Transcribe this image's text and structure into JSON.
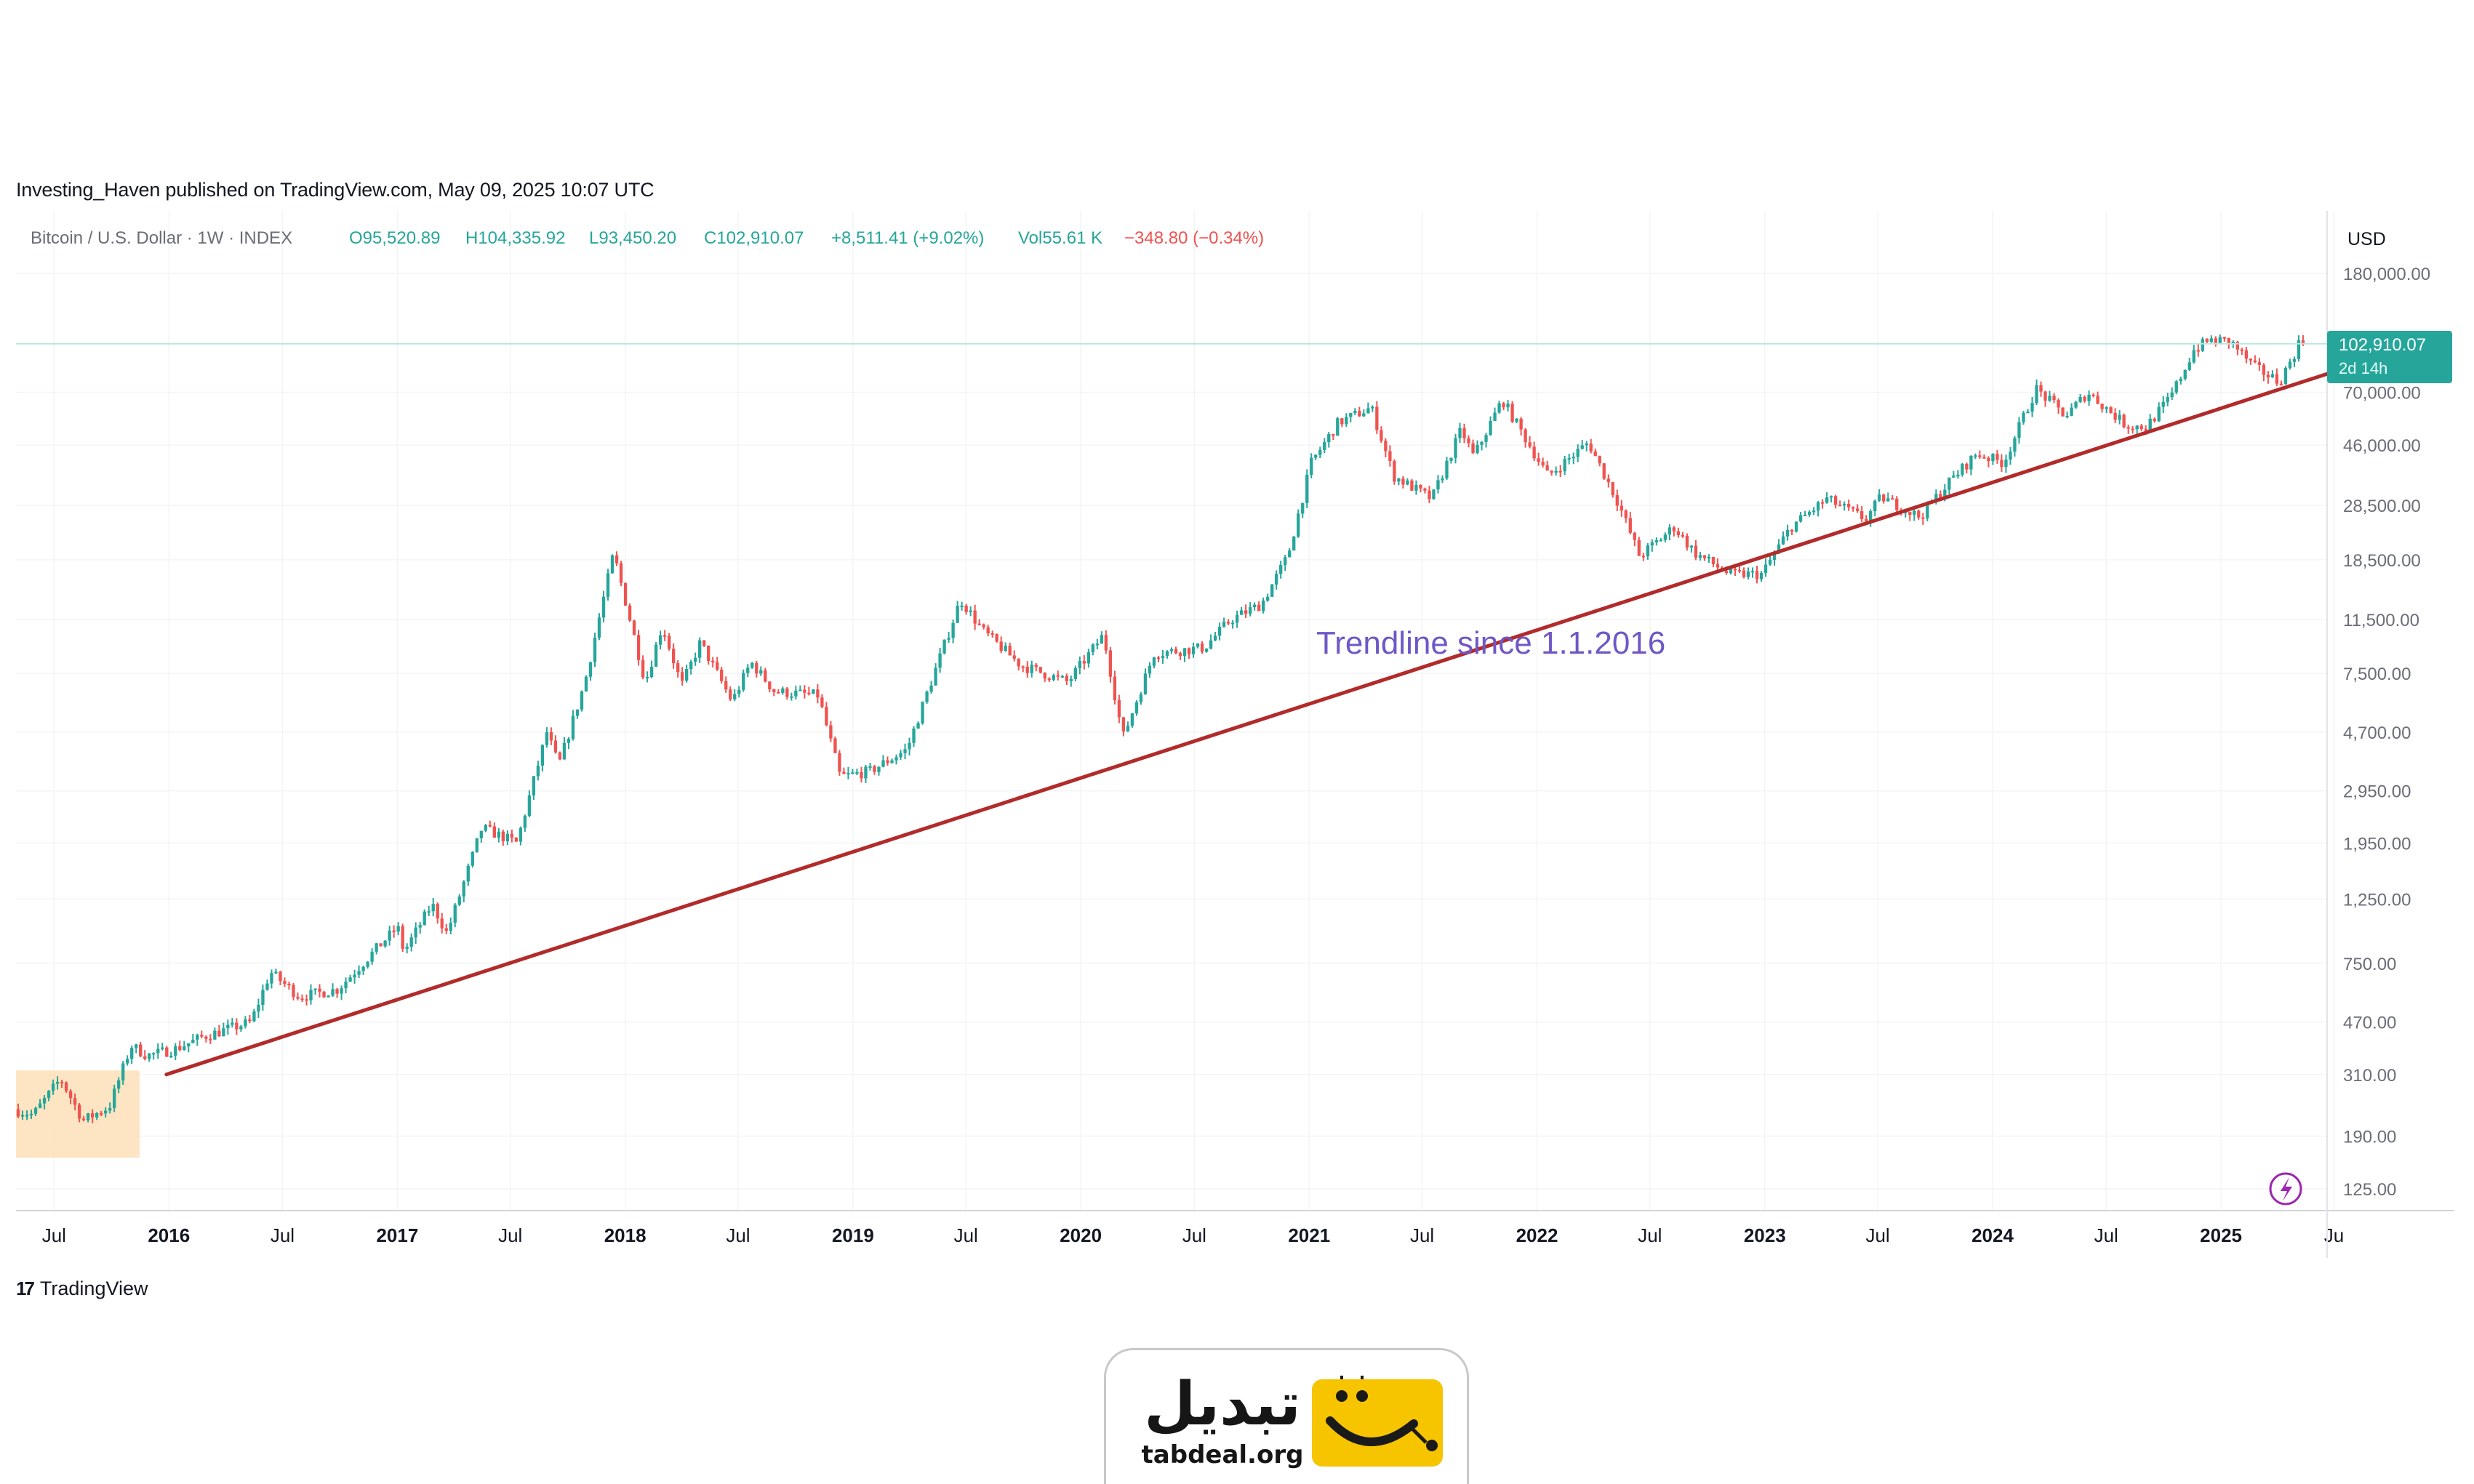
{
  "header": {
    "publish_line": "Investing_Haven published on TradingView.com, May 09, 2025 10:07 UTC"
  },
  "legend": {
    "symbol": "Bitcoin / U.S. Dollar · 1W · INDEX",
    "open": "O95,520.89",
    "high": "H104,335.92",
    "low": "L93,450.20",
    "close": "C102,910.07",
    "change": "+8,511.41 (+9.02%)",
    "volume": "Vol55.61 K",
    "volume_change": "−348.80 (−0.34%)"
  },
  "price_axis": {
    "currency": "USD",
    "last_price": "102,910.07",
    "countdown": "2d 14h"
  },
  "annotation": {
    "text": "Trendline since 1.1.2016"
  },
  "footer": {
    "brand": "TradingView"
  },
  "badge": {
    "name": "تبدیل",
    "domain": "tabdeal.org"
  },
  "colors": {
    "up": "#26a69a",
    "down": "#ef5350",
    "trendline": "#b22b2b",
    "annotation": "#6f57c7",
    "highlight": "#fde0b8",
    "badge_yellow": "#f7c400"
  },
  "chart_data": {
    "type": "candlestick",
    "scale": "log",
    "interval": "1W",
    "x_range": [
      "2015-05-01",
      "2025-06-20"
    ],
    "y_ticks": [
      125,
      190,
      310,
      470,
      750,
      1250,
      1950,
      2950,
      4700,
      7500,
      11500,
      18500,
      28500,
      46000,
      70000,
      180000
    ],
    "y_tick_labels": [
      "125.00",
      "190.00",
      "310.00",
      "470.00",
      "750.00",
      "1,250.00",
      "1,950.00",
      "2,950.00",
      "4,700.00",
      "7,500.00",
      "11,500.00",
      "18,500.00",
      "28,500.00",
      "46,000.00",
      "70,000.00",
      "180,000.00"
    ],
    "x_ticks": [
      {
        "date": "2015-07-01",
        "label": "Jul",
        "bold": false
      },
      {
        "date": "2016-01-01",
        "label": "2016",
        "bold": true
      },
      {
        "date": "2016-07-01",
        "label": "Jul",
        "bold": false
      },
      {
        "date": "2017-01-01",
        "label": "2017",
        "bold": true
      },
      {
        "date": "2017-07-01",
        "label": "Jul",
        "bold": false
      },
      {
        "date": "2018-01-01",
        "label": "2018",
        "bold": true
      },
      {
        "date": "2018-07-01",
        "label": "Jul",
        "bold": false
      },
      {
        "date": "2019-01-01",
        "label": "2019",
        "bold": true
      },
      {
        "date": "2019-07-01",
        "label": "Jul",
        "bold": false
      },
      {
        "date": "2020-01-01",
        "label": "2020",
        "bold": true
      },
      {
        "date": "2020-07-01",
        "label": "Jul",
        "bold": false
      },
      {
        "date": "2021-01-01",
        "label": "2021",
        "bold": true
      },
      {
        "date": "2021-07-01",
        "label": "Jul",
        "bold": false
      },
      {
        "date": "2022-01-01",
        "label": "2022",
        "bold": true
      },
      {
        "date": "2022-07-01",
        "label": "Jul",
        "bold": false
      },
      {
        "date": "2023-01-01",
        "label": "2023",
        "bold": true
      },
      {
        "date": "2023-07-01",
        "label": "Jul",
        "bold": false
      },
      {
        "date": "2024-01-01",
        "label": "2024",
        "bold": true
      },
      {
        "date": "2024-07-01",
        "label": "Jul",
        "bold": false
      },
      {
        "date": "2025-01-01",
        "label": "2025",
        "bold": true
      },
      {
        "date": "2025-07-01",
        "label": "Ju",
        "bold": false
      }
    ],
    "price_path": [
      [
        "2015-05-01",
        235
      ],
      [
        "2015-06-01",
        225
      ],
      [
        "2015-07-15",
        300
      ],
      [
        "2015-08-20",
        215
      ],
      [
        "2015-10-01",
        240
      ],
      [
        "2015-11-05",
        390
      ],
      [
        "2015-12-01",
        360
      ],
      [
        "2016-01-15",
        380
      ],
      [
        "2016-03-01",
        420
      ],
      [
        "2016-05-15",
        470
      ],
      [
        "2016-06-15",
        700
      ],
      [
        "2016-08-01",
        575
      ],
      [
        "2016-10-01",
        610
      ],
      [
        "2016-12-15",
        900
      ],
      [
        "2017-01-05",
        1000
      ],
      [
        "2017-01-15",
        820
      ],
      [
        "2017-03-01",
        1200
      ],
      [
        "2017-03-25",
        950
      ],
      [
        "2017-05-20",
        2200
      ],
      [
        "2017-07-15",
        1950
      ],
      [
        "2017-09-01",
        4700
      ],
      [
        "2017-09-20",
        3600
      ],
      [
        "2017-11-01",
        7000
      ],
      [
        "2017-12-17",
        19500
      ],
      [
        "2018-02-06",
        7000
      ],
      [
        "2018-03-05",
        11000
      ],
      [
        "2018-04-05",
        6800
      ],
      [
        "2018-05-05",
        9600
      ],
      [
        "2018-06-25",
        6000
      ],
      [
        "2018-07-25",
        8200
      ],
      [
        "2018-09-01",
        6500
      ],
      [
        "2018-11-10",
        6300
      ],
      [
        "2018-12-15",
        3300
      ],
      [
        "2019-02-01",
        3450
      ],
      [
        "2019-04-01",
        4100
      ],
      [
        "2019-06-26",
        13500
      ],
      [
        "2019-08-01",
        10500
      ],
      [
        "2019-10-01",
        8000
      ],
      [
        "2019-12-15",
        7000
      ],
      [
        "2020-02-10",
        10200
      ],
      [
        "2020-03-12",
        4500
      ],
      [
        "2020-05-01",
        8800
      ],
      [
        "2020-07-20",
        9200
      ],
      [
        "2020-09-01",
        11500
      ],
      [
        "2020-10-20",
        13000
      ],
      [
        "2020-12-01",
        19000
      ],
      [
        "2021-01-08",
        40000
      ],
      [
        "2021-02-20",
        55000
      ],
      [
        "2021-04-14",
        62000
      ],
      [
        "2021-05-20",
        36000
      ],
      [
        "2021-07-20",
        30000
      ],
      [
        "2021-09-05",
        52000
      ],
      [
        "2021-09-25",
        42000
      ],
      [
        "2021-11-10",
        66000
      ],
      [
        "2022-01-22",
        36000
      ],
      [
        "2022-03-28",
        47000
      ],
      [
        "2022-05-15",
        29000
      ],
      [
        "2022-06-18",
        19000
      ],
      [
        "2022-08-12",
        24000
      ],
      [
        "2022-09-15",
        19500
      ],
      [
        "2022-11-09",
        16500
      ],
      [
        "2022-12-31",
        16500
      ],
      [
        "2023-02-15",
        24000
      ],
      [
        "2023-04-14",
        30000
      ],
      [
        "2023-06-15",
        25500
      ],
      [
        "2023-07-10",
        30500
      ],
      [
        "2023-09-10",
        26000
      ],
      [
        "2023-10-25",
        34000
      ],
      [
        "2023-12-10",
        43000
      ],
      [
        "2024-01-22",
        40000
      ],
      [
        "2024-03-14",
        72000
      ],
      [
        "2024-05-01",
        58000
      ],
      [
        "2024-06-05",
        70000
      ],
      [
        "2024-08-05",
        54000
      ],
      [
        "2024-09-06",
        53000
      ],
      [
        "2024-10-15",
        67000
      ],
      [
        "2024-11-22",
        98000
      ],
      [
        "2024-12-17",
        106000
      ],
      [
        "2025-01-20",
        105000
      ],
      [
        "2025-02-25",
        86000
      ],
      [
        "2025-04-08",
        76000
      ],
      [
        "2025-05-01",
        94000
      ],
      [
        "2025-05-09",
        102910
      ]
    ],
    "trendline": {
      "start": [
        "2015-12-28",
        310
      ],
      "end": [
        "2025-06-20",
        81000
      ]
    },
    "highlight_zone": {
      "x": [
        "2015-05-01",
        "2015-11-15"
      ],
      "y": [
        160,
        320
      ]
    },
    "horizontal_line": 102910.07
  }
}
